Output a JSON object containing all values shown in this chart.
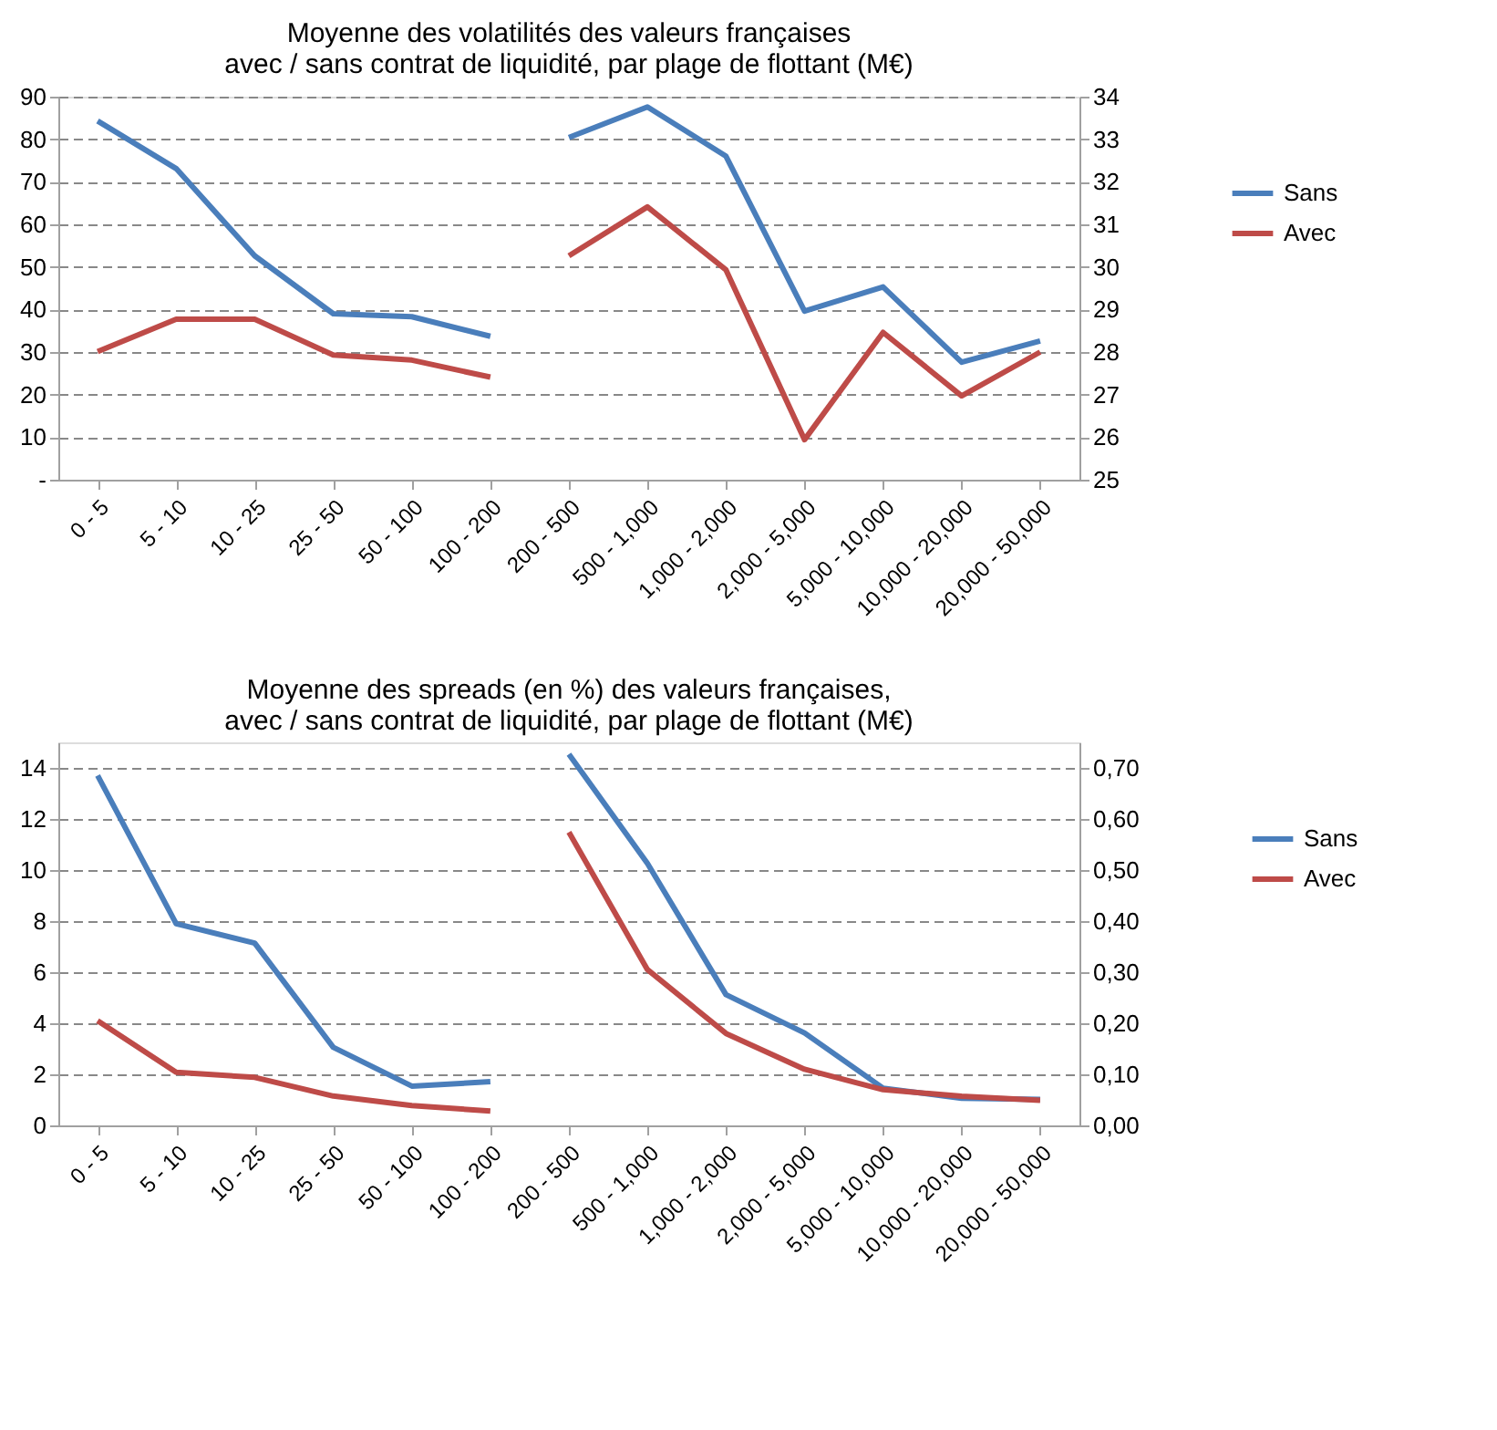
{
  "chart_data": [
    {
      "type": "line",
      "title": "Moyenne des  volatilités des valeurs françaises\navec / sans contrat de liquidité, par plage de flottant (M€)",
      "categories": [
        "0 - 5",
        "5 - 10",
        "10 - 25",
        "25 - 50",
        "50 - 100",
        "100 - 200",
        "200 - 500",
        "500 - 1,000",
        "1,000 - 2,000",
        "2,000 - 5,000",
        "5,000 - 10,000",
        "10,000 - 20,000",
        "20,000 - 50,000"
      ],
      "series": [
        {
          "name": "Sans",
          "color": "#4a7ebb",
          "x": [
            "0 - 5",
            "5 - 10",
            "10 - 25",
            "25 - 50",
            "50 - 100",
            "100 - 200"
          ],
          "values": [
            84.3,
            73.1,
            52.6,
            39,
            38.3,
            33.7
          ]
        },
        {
          "name": "Avec",
          "color": "#be4b48",
          "x": [
            "0 - 5",
            "5 - 10",
            "10 - 25",
            "25 - 50",
            "50 - 100",
            "100 - 200"
          ],
          "values": [
            30.1,
            37.7,
            37.7,
            29.3,
            28.1,
            24.1
          ]
        },
        {
          "color": "#4a7ebb",
          "axis": "y2",
          "x": [
            "200 - 500",
            "500 - 1,000",
            "1,000 - 2,000",
            "2,000 - 5,000",
            "5,000 - 10,000",
            "10,000 - 20,000",
            "20,000 - 50,000"
          ],
          "values": [
            33.04,
            33.76,
            32.6,
            28.96,
            29.53,
            27.76,
            28.26
          ]
        },
        {
          "color": "#be4b48",
          "axis": "y2",
          "x": [
            "200 - 500",
            "500 - 1,000",
            "1,000 - 2,000",
            "2,000 - 5,000",
            "5,000 - 10,000",
            "10,000 - 20,000",
            "20,000 - 50,000"
          ],
          "values": [
            30.26,
            31.41,
            29.93,
            25.94,
            28.46,
            26.97,
            28.0
          ]
        }
      ],
      "ylim": [
        0,
        90
      ],
      "yticks": [
        {
          "value": 0,
          "label": "-"
        },
        10,
        20,
        30,
        40,
        50,
        60,
        70,
        80,
        90
      ],
      "y2lim": [
        25,
        34
      ],
      "y2ticks": [
        25,
        26,
        27,
        28,
        29,
        30,
        31,
        32,
        33,
        34
      ],
      "grid": "y",
      "legend": "right",
      "line_style": "solid",
      "marker": "none"
    },
    {
      "type": "line",
      "title": "Moyenne des  spreads (en %) des valeurs françaises,\navec / sans contrat de liquidité, par plage de flottant (M€)",
      "categories": [
        "0 - 5",
        "5 - 10",
        "10 - 25",
        "25 - 50",
        "50 - 100",
        "100 - 200",
        "200 - 500",
        "500 - 1,000",
        "1,000 - 2,000",
        "2,000 - 5,000",
        "5,000 - 10,000",
        "10,000 - 20,000",
        "20,000 - 50,000"
      ],
      "series": [
        {
          "name": "Sans",
          "color": "#4a7ebb",
          "x": [
            "0 - 5",
            "5 - 10",
            "10 - 25",
            "25 - 50",
            "50 - 100",
            "100 - 200"
          ],
          "values": [
            13.7,
            7.9,
            7.14,
            3.06,
            1.54,
            1.71
          ]
        },
        {
          "name": "Avec",
          "color": "#be4b48",
          "x": [
            "0 - 5",
            "5 - 10",
            "10 - 25",
            "25 - 50",
            "50 - 100",
            "100 - 200"
          ],
          "values": [
            4.1,
            2.08,
            1.88,
            1.15,
            0.78,
            0.56
          ]
        },
        {
          "color": "#4a7ebb",
          "axis": "y2",
          "x": [
            "200 - 500",
            "500 - 1,000",
            "1,000 - 2,000",
            "2,000 - 5,000",
            "5,000 - 10,000",
            "10,000 - 20,000",
            "20,000 - 50,000"
          ],
          "values": [
            0.727,
            0.513,
            0.256,
            0.181,
            0.073,
            0.053,
            0.051
          ]
        },
        {
          "color": "#be4b48",
          "axis": "y2",
          "x": [
            "200 - 500",
            "500 - 1,000",
            "1,000 - 2,000",
            "2,000 - 5,000",
            "5,000 - 10,000",
            "10,000 - 20,000",
            "20,000 - 50,000"
          ],
          "values": [
            0.574,
            0.305,
            0.18,
            0.11,
            0.07,
            0.057,
            0.049
          ]
        }
      ],
      "ylim": [
        0,
        15
      ],
      "yticks": [
        0,
        2,
        4,
        6,
        8,
        10,
        12,
        14
      ],
      "y2lim": [
        0,
        0.75
      ],
      "y2ticks": [
        {
          "value": 0,
          "label": "0,00"
        },
        {
          "value": 0.1,
          "label": "0,10"
        },
        {
          "value": 0.2,
          "label": "0,20"
        },
        {
          "value": 0.3,
          "label": "0,30"
        },
        {
          "value": 0.4,
          "label": "0,40"
        },
        {
          "value": 0.5,
          "label": "0,50"
        },
        {
          "value": 0.6,
          "label": "0,60"
        },
        {
          "value": 0.7,
          "label": "0,70"
        }
      ],
      "grid": "y",
      "legend": "right",
      "line_style": "solid",
      "marker": "none"
    }
  ]
}
